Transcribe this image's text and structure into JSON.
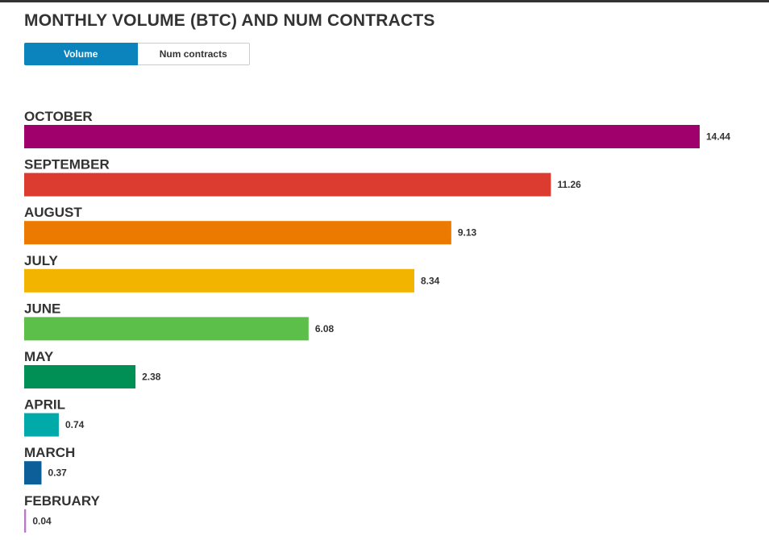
{
  "chart_data": {
    "type": "bar",
    "orientation": "horizontal",
    "title": "MONTHLY VOLUME (BTC) AND NUM CONTRACTS",
    "categories": [
      "OCTOBER",
      "SEPTEMBER",
      "AUGUST",
      "JULY",
      "JUNE",
      "MAY",
      "APRIL",
      "MARCH",
      "FEBRUARY"
    ],
    "values": [
      14.44,
      11.26,
      9.13,
      8.34,
      6.08,
      2.38,
      0.74,
      0.37,
      0.04
    ],
    "value_labels": [
      "14.44",
      "11.26",
      "9.13",
      "8.34",
      "6.08",
      "2.38",
      "0.74",
      "0.37",
      "0.04"
    ],
    "colors": [
      "#a0006b",
      "#dc3b2f",
      "#ec7a00",
      "#f3b400",
      "#5bbf4a",
      "#009055",
      "#00aaa8",
      "#0c5f99",
      "#b77bc6"
    ],
    "xlim": [
      0,
      14.44
    ],
    "grid": false,
    "legend": "none"
  },
  "toggle": {
    "options": [
      {
        "label": "Volume",
        "active": true
      },
      {
        "label": "Num contracts",
        "active": false
      }
    ],
    "active_color": "#0b83bd"
  }
}
